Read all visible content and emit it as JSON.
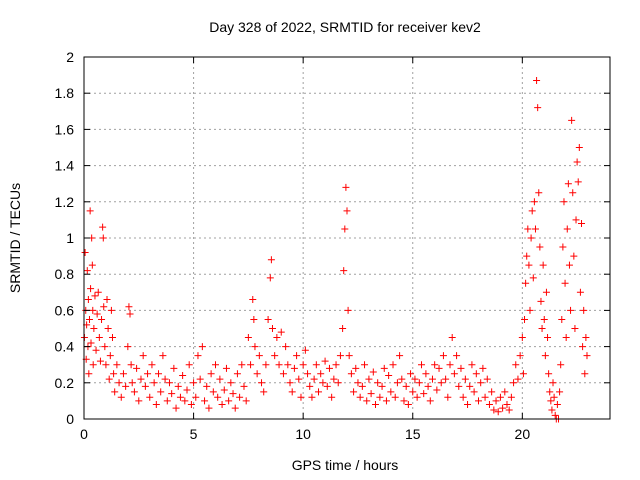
{
  "chart_data": {
    "type": "scatter",
    "title": "Day 328 of 2022, SRMTID for receiver kev2",
    "xlabel": "GPS time / hours",
    "ylabel": "SRMTID / TECUs",
    "xlim": [
      0,
      24
    ],
    "ylim": [
      0,
      2
    ],
    "xticks": [
      0,
      5,
      10,
      15,
      20
    ],
    "yticks": [
      0,
      0.2,
      0.4,
      0.6,
      0.8,
      1,
      1.2,
      1.4,
      1.6,
      1.8,
      2
    ],
    "xtick_labels": [
      "0",
      "5",
      "10",
      "15",
      "20"
    ],
    "ytick_labels": [
      "0",
      "0.2",
      "0.4",
      "0.6",
      "0.8",
      "1",
      "1.2",
      "1.4",
      "1.6",
      "1.8",
      "2"
    ],
    "grid": true,
    "marker": "plus",
    "color": "#ff0000",
    "series": [
      {
        "name": "kev2",
        "points": [
          [
            0.02,
            0.45
          ],
          [
            0.05,
            0.92
          ],
          [
            0.08,
            0.6
          ],
          [
            0.1,
            0.33
          ],
          [
            0.12,
            0.52
          ],
          [
            0.15,
            0.82
          ],
          [
            0.18,
            0.4
          ],
          [
            0.2,
            0.66
          ],
          [
            0.22,
            0.25
          ],
          [
            0.25,
            0.55
          ],
          [
            0.28,
            1.15
          ],
          [
            0.3,
            0.72
          ],
          [
            0.32,
            0.42
          ],
          [
            0.35,
            1.0
          ],
          [
            0.38,
            0.85
          ],
          [
            0.4,
            0.6
          ],
          [
            0.42,
            0.3
          ],
          [
            0.45,
            0.5
          ],
          [
            0.5,
            0.68
          ],
          [
            0.55,
            0.38
          ],
          [
            0.6,
            0.58
          ],
          [
            0.65,
            0.7
          ],
          [
            0.7,
            0.45
          ],
          [
            0.75,
            0.32
          ],
          [
            0.8,
            0.55
          ],
          [
            0.85,
            1.06
          ],
          [
            0.88,
            1.0
          ],
          [
            0.9,
            0.62
          ],
          [
            0.95,
            0.4
          ],
          [
            1.0,
            0.3
          ],
          [
            1.05,
            0.66
          ],
          [
            1.1,
            0.5
          ],
          [
            1.15,
            0.22
          ],
          [
            1.2,
            0.35
          ],
          [
            1.25,
            0.6
          ],
          [
            1.3,
            0.45
          ],
          [
            1.35,
            0.25
          ],
          [
            1.4,
            0.15
          ],
          [
            1.5,
            0.3
          ],
          [
            1.6,
            0.2
          ],
          [
            1.7,
            0.12
          ],
          [
            1.8,
            0.25
          ],
          [
            1.9,
            0.18
          ],
          [
            2.0,
            0.4
          ],
          [
            2.05,
            0.62
          ],
          [
            2.1,
            0.58
          ],
          [
            2.15,
            0.3
          ],
          [
            2.2,
            0.2
          ],
          [
            2.3,
            0.15
          ],
          [
            2.4,
            0.28
          ],
          [
            2.5,
            0.1
          ],
          [
            2.6,
            0.22
          ],
          [
            2.7,
            0.35
          ],
          [
            2.8,
            0.18
          ],
          [
            2.9,
            0.25
          ],
          [
            3.0,
            0.12
          ],
          [
            3.1,
            0.3
          ],
          [
            3.2,
            0.2
          ],
          [
            3.3,
            0.08
          ],
          [
            3.4,
            0.25
          ],
          [
            3.5,
            0.15
          ],
          [
            3.6,
            0.35
          ],
          [
            3.7,
            0.22
          ],
          [
            3.8,
            0.1
          ],
          [
            3.9,
            0.2
          ],
          [
            4.0,
            0.14
          ],
          [
            4.1,
            0.28
          ],
          [
            4.2,
            0.06
          ],
          [
            4.3,
            0.18
          ],
          [
            4.4,
            0.12
          ],
          [
            4.5,
            0.24
          ],
          [
            4.6,
            0.1
          ],
          [
            4.7,
            0.16
          ],
          [
            4.8,
            0.3
          ],
          [
            4.9,
            0.08
          ],
          [
            5.0,
            0.2
          ],
          [
            5.1,
            0.12
          ],
          [
            5.2,
            0.35
          ],
          [
            5.3,
            0.22
          ],
          [
            5.4,
            0.4
          ],
          [
            5.5,
            0.1
          ],
          [
            5.6,
            0.18
          ],
          [
            5.7,
            0.06
          ],
          [
            5.8,
            0.25
          ],
          [
            5.9,
            0.15
          ],
          [
            6.0,
            0.3
          ],
          [
            6.1,
            0.12
          ],
          [
            6.2,
            0.22
          ],
          [
            6.3,
            0.08
          ],
          [
            6.4,
            0.16
          ],
          [
            6.5,
            0.28
          ],
          [
            6.6,
            0.1
          ],
          [
            6.7,
            0.2
          ],
          [
            6.8,
            0.14
          ],
          [
            6.9,
            0.06
          ],
          [
            7.0,
            0.25
          ],
          [
            7.1,
            0.12
          ],
          [
            7.2,
            0.3
          ],
          [
            7.3,
            0.18
          ],
          [
            7.4,
            0.1
          ],
          [
            7.5,
            0.45
          ],
          [
            7.6,
            0.3
          ],
          [
            7.7,
            0.66
          ],
          [
            7.75,
            0.55
          ],
          [
            7.8,
            0.4
          ],
          [
            7.9,
            0.25
          ],
          [
            8.0,
            0.35
          ],
          [
            8.1,
            0.2
          ],
          [
            8.2,
            0.15
          ],
          [
            8.3,
            0.3
          ],
          [
            8.4,
            0.55
          ],
          [
            8.5,
            0.78
          ],
          [
            8.55,
            0.88
          ],
          [
            8.6,
            0.5
          ],
          [
            8.7,
            0.35
          ],
          [
            8.8,
            0.45
          ],
          [
            8.9,
            0.3
          ],
          [
            9.0,
            0.48
          ],
          [
            9.1,
            0.25
          ],
          [
            9.2,
            0.4
          ],
          [
            9.3,
            0.3
          ],
          [
            9.4,
            0.2
          ],
          [
            9.5,
            0.15
          ],
          [
            9.6,
            0.28
          ],
          [
            9.7,
            0.35
          ],
          [
            9.8,
            0.22
          ],
          [
            9.9,
            0.12
          ],
          [
            10.0,
            0.3
          ],
          [
            10.1,
            0.38
          ],
          [
            10.2,
            0.25
          ],
          [
            10.3,
            0.18
          ],
          [
            10.4,
            0.12
          ],
          [
            10.5,
            0.22
          ],
          [
            10.6,
            0.3
          ],
          [
            10.7,
            0.15
          ],
          [
            10.8,
            0.25
          ],
          [
            10.9,
            0.2
          ],
          [
            11.0,
            0.32
          ],
          [
            11.1,
            0.18
          ],
          [
            11.2,
            0.28
          ],
          [
            11.3,
            0.12
          ],
          [
            11.4,
            0.22
          ],
          [
            11.5,
            0.3
          ],
          [
            11.6,
            0.2
          ],
          [
            11.7,
            0.35
          ],
          [
            11.8,
            0.5
          ],
          [
            11.85,
            0.82
          ],
          [
            11.9,
            1.05
          ],
          [
            11.95,
            1.28
          ],
          [
            12.0,
            1.15
          ],
          [
            12.05,
            0.6
          ],
          [
            12.1,
            0.35
          ],
          [
            12.2,
            0.25
          ],
          [
            12.3,
            0.15
          ],
          [
            12.4,
            0.28
          ],
          [
            12.5,
            0.2
          ],
          [
            12.6,
            0.12
          ],
          [
            12.7,
            0.18
          ],
          [
            12.8,
            0.3
          ],
          [
            12.9,
            0.1
          ],
          [
            13.0,
            0.22
          ],
          [
            13.1,
            0.14
          ],
          [
            13.2,
            0.26
          ],
          [
            13.3,
            0.08
          ],
          [
            13.4,
            0.2
          ],
          [
            13.5,
            0.12
          ],
          [
            13.6,
            0.18
          ],
          [
            13.7,
            0.28
          ],
          [
            13.8,
            0.1
          ],
          [
            13.9,
            0.24
          ],
          [
            14.0,
            0.15
          ],
          [
            14.1,
            0.3
          ],
          [
            14.2,
            0.12
          ],
          [
            14.3,
            0.2
          ],
          [
            14.4,
            0.35
          ],
          [
            14.5,
            0.22
          ],
          [
            14.6,
            0.1
          ],
          [
            14.7,
            0.18
          ],
          [
            14.8,
            0.08
          ],
          [
            14.9,
            0.25
          ],
          [
            15.0,
            0.15
          ],
          [
            15.1,
            0.22
          ],
          [
            15.2,
            0.12
          ],
          [
            15.3,
            0.2
          ],
          [
            15.4,
            0.3
          ],
          [
            15.5,
            0.14
          ],
          [
            15.6,
            0.25
          ],
          [
            15.7,
            0.18
          ],
          [
            15.8,
            0.1
          ],
          [
            15.9,
            0.22
          ],
          [
            16.0,
            0.3
          ],
          [
            16.1,
            0.16
          ],
          [
            16.2,
            0.28
          ],
          [
            16.3,
            0.2
          ],
          [
            16.4,
            0.35
          ],
          [
            16.5,
            0.22
          ],
          [
            16.6,
            0.12
          ],
          [
            16.7,
            0.3
          ],
          [
            16.8,
            0.45
          ],
          [
            16.9,
            0.25
          ],
          [
            17.0,
            0.35
          ],
          [
            17.1,
            0.18
          ],
          [
            17.2,
            0.28
          ],
          [
            17.3,
            0.12
          ],
          [
            17.4,
            0.22
          ],
          [
            17.5,
            0.08
          ],
          [
            17.6,
            0.18
          ],
          [
            17.7,
            0.3
          ],
          [
            17.8,
            0.15
          ],
          [
            17.9,
            0.25
          ],
          [
            18.0,
            0.1
          ],
          [
            18.1,
            0.2
          ],
          [
            18.2,
            0.28
          ],
          [
            18.3,
            0.12
          ],
          [
            18.4,
            0.22
          ],
          [
            18.5,
            0.08
          ],
          [
            18.6,
            0.15
          ],
          [
            18.7,
            0.05
          ],
          [
            18.8,
            0.1
          ],
          [
            18.9,
            0.04
          ],
          [
            19.0,
            0.12
          ],
          [
            19.1,
            0.06
          ],
          [
            19.2,
            0.15
          ],
          [
            19.3,
            0.08
          ],
          [
            19.4,
            0.05
          ],
          [
            19.5,
            0.12
          ],
          [
            19.6,
            0.2
          ],
          [
            19.7,
            0.3
          ],
          [
            19.8,
            0.22
          ],
          [
            19.9,
            0.35
          ],
          [
            20.0,
            0.45
          ],
          [
            20.05,
            0.25
          ],
          [
            20.1,
            0.55
          ],
          [
            20.15,
            0.75
          ],
          [
            20.2,
            0.9
          ],
          [
            20.25,
            1.05
          ],
          [
            20.3,
            0.85
          ],
          [
            20.35,
            0.6
          ],
          [
            20.4,
            1.0
          ],
          [
            20.45,
            1.15
          ],
          [
            20.5,
            0.78
          ],
          [
            20.55,
            1.2
          ],
          [
            20.6,
            1.05
          ],
          [
            20.65,
            1.87
          ],
          [
            20.7,
            1.72
          ],
          [
            20.75,
            1.25
          ],
          [
            20.8,
            0.95
          ],
          [
            20.85,
            0.65
          ],
          [
            20.9,
            0.5
          ],
          [
            20.95,
            0.85
          ],
          [
            21.0,
            0.55
          ],
          [
            21.05,
            0.35
          ],
          [
            21.1,
            0.7
          ],
          [
            21.15,
            0.45
          ],
          [
            21.2,
            0.25
          ],
          [
            21.25,
            0.15
          ],
          [
            21.3,
            0.1
          ],
          [
            21.35,
            0.05
          ],
          [
            21.4,
            0.2
          ],
          [
            21.45,
            0.12
          ],
          [
            21.5,
            0.02
          ],
          [
            21.55,
            0.0
          ],
          [
            21.6,
            0.08
          ],
          [
            21.65,
            0.0
          ],
          [
            21.7,
            0.15
          ],
          [
            21.75,
            0.3
          ],
          [
            21.8,
            0.55
          ],
          [
            21.85,
            0.95
          ],
          [
            21.9,
            1.2
          ],
          [
            21.95,
            0.75
          ],
          [
            22.0,
            0.45
          ],
          [
            22.05,
            1.05
          ],
          [
            22.1,
            1.3
          ],
          [
            22.15,
            0.85
          ],
          [
            22.2,
            0.6
          ],
          [
            22.25,
            1.65
          ],
          [
            22.3,
            1.25
          ],
          [
            22.35,
            0.9
          ],
          [
            22.4,
            0.5
          ],
          [
            22.45,
            1.1
          ],
          [
            22.5,
            1.42
          ],
          [
            22.55,
            1.31
          ],
          [
            22.6,
            1.5
          ],
          [
            22.65,
            0.7
          ],
          [
            22.7,
            1.08
          ],
          [
            22.75,
            0.4
          ],
          [
            22.8,
            0.6
          ],
          [
            22.85,
            0.25
          ],
          [
            22.9,
            0.45
          ],
          [
            22.95,
            0.35
          ]
        ]
      }
    ]
  }
}
